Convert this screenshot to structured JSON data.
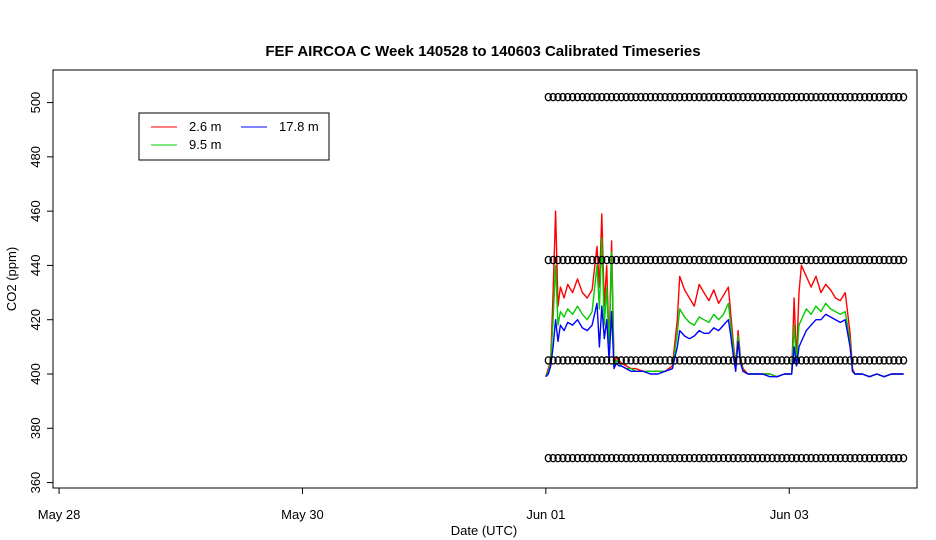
{
  "chart_data": {
    "type": "line",
    "title": "FEF AIRCOA C  Week 140528 to 140603  Calibrated Timeseries",
    "xlabel": "Date (UTC)",
    "ylabel": "CO2 (ppm)",
    "x_ticks": [
      {
        "label": "May 28",
        "day": 0
      },
      {
        "label": "May 30",
        "day": 2
      },
      {
        "label": "Jun 01",
        "day": 4
      },
      {
        "label": "Jun 03",
        "day": 6
      }
    ],
    "xlim_days": [
      -0.05,
      7.05
    ],
    "ylim": [
      358,
      512
    ],
    "y_ticks": [
      360,
      380,
      400,
      420,
      440,
      460,
      480,
      500
    ],
    "grid": false,
    "legend": {
      "placement": "top-left",
      "entries": [
        {
          "label": "2.6 m",
          "color": "#ff0000"
        },
        {
          "label": "9.5 m",
          "color": "#00cc00"
        },
        {
          "label": "17.8 m",
          "color": "#0000ff"
        }
      ]
    },
    "series": [
      {
        "name": "2.6 m",
        "color": "#ff0000",
        "x": [
          4.0,
          4.02,
          4.04,
          4.06,
          4.08,
          4.1,
          4.12,
          4.15,
          4.18,
          4.22,
          4.26,
          4.3,
          4.34,
          4.38,
          4.42,
          4.44,
          4.46,
          4.48,
          4.5,
          4.52,
          4.54,
          4.56,
          4.58,
          4.6,
          4.62,
          4.66,
          4.7,
          4.74,
          4.8,
          4.86,
          4.92,
          4.98,
          5.04,
          5.08,
          5.1,
          5.14,
          5.18,
          5.22,
          5.26,
          5.3,
          5.34,
          5.38,
          5.42,
          5.46,
          5.5,
          5.52,
          5.54,
          5.56,
          5.58,
          5.6,
          5.62,
          5.66,
          5.72,
          5.78,
          5.84,
          5.9,
          5.96,
          6.02,
          6.04,
          6.06,
          6.08,
          6.1,
          6.14,
          6.18,
          6.22,
          6.26,
          6.3,
          6.34,
          6.38,
          6.42,
          6.46,
          6.5,
          6.52,
          6.54,
          6.56,
          6.6,
          6.66,
          6.72,
          6.78,
          6.84,
          6.9,
          6.94
        ],
        "values": [
          399,
          402,
          405,
          430,
          460,
          425,
          432,
          428,
          433,
          430,
          435,
          430,
          428,
          431,
          447,
          432,
          459,
          425,
          440,
          410,
          449,
          404,
          406,
          405,
          404,
          403,
          402,
          402,
          401,
          401,
          401,
          401,
          403,
          420,
          436,
          431,
          428,
          425,
          433,
          430,
          427,
          431,
          426,
          429,
          432,
          422,
          412,
          403,
          416,
          406,
          402,
          400,
          400,
          400,
          400,
          399,
          400,
          400,
          428,
          405,
          430,
          440,
          436,
          432,
          436,
          430,
          433,
          431,
          428,
          427,
          430,
          415,
          402,
          400,
          400,
          400,
          399,
          400,
          399,
          400,
          400,
          400
        ]
      },
      {
        "name": "9.5 m",
        "color": "#00cc00",
        "x": [
          4.0,
          4.02,
          4.04,
          4.06,
          4.08,
          4.1,
          4.12,
          4.15,
          4.18,
          4.22,
          4.26,
          4.3,
          4.34,
          4.38,
          4.42,
          4.44,
          4.46,
          4.48,
          4.5,
          4.52,
          4.54,
          4.56,
          4.58,
          4.6,
          4.62,
          4.66,
          4.7,
          4.74,
          4.8,
          4.86,
          4.92,
          4.98,
          5.04,
          5.08,
          5.1,
          5.14,
          5.18,
          5.22,
          5.26,
          5.3,
          5.34,
          5.38,
          5.42,
          5.46,
          5.5,
          5.52,
          5.54,
          5.56,
          5.58,
          5.6,
          5.62,
          5.66,
          5.72,
          5.78,
          5.84,
          5.9,
          5.96,
          6.02,
          6.04,
          6.06,
          6.08,
          6.1,
          6.14,
          6.18,
          6.22,
          6.26,
          6.3,
          6.34,
          6.38,
          6.42,
          6.46,
          6.5,
          6.52,
          6.54,
          6.56,
          6.6,
          6.66,
          6.72,
          6.78,
          6.84,
          6.9,
          6.94
        ],
        "values": [
          399,
          401,
          404,
          420,
          440,
          418,
          423,
          421,
          424,
          422,
          425,
          422,
          420,
          423,
          440,
          424,
          450,
          418,
          432,
          408,
          445,
          403,
          405,
          404,
          403,
          402,
          402,
          401,
          401,
          401,
          401,
          401,
          402,
          415,
          424,
          421,
          419,
          418,
          421,
          420,
          419,
          422,
          420,
          422,
          426,
          418,
          410,
          402,
          414,
          405,
          401,
          400,
          400,
          400,
          400,
          399,
          400,
          400,
          418,
          404,
          418,
          420,
          424,
          422,
          425,
          423,
          426,
          424,
          423,
          422,
          423,
          412,
          401,
          400,
          400,
          400,
          399,
          400,
          399,
          400,
          400,
          400
        ]
      },
      {
        "name": "17.8 m",
        "color": "#0000ff",
        "x": [
          4.0,
          4.02,
          4.04,
          4.06,
          4.08,
          4.1,
          4.12,
          4.15,
          4.18,
          4.22,
          4.26,
          4.3,
          4.34,
          4.38,
          4.42,
          4.44,
          4.46,
          4.48,
          4.5,
          4.52,
          4.54,
          4.56,
          4.58,
          4.6,
          4.62,
          4.66,
          4.7,
          4.74,
          4.8,
          4.86,
          4.92,
          4.98,
          5.04,
          5.08,
          5.1,
          5.14,
          5.18,
          5.22,
          5.26,
          5.3,
          5.34,
          5.38,
          5.42,
          5.46,
          5.5,
          5.52,
          5.54,
          5.56,
          5.58,
          5.6,
          5.62,
          5.66,
          5.72,
          5.78,
          5.84,
          5.9,
          5.96,
          6.02,
          6.04,
          6.06,
          6.08,
          6.1,
          6.14,
          6.18,
          6.22,
          6.26,
          6.3,
          6.34,
          6.38,
          6.42,
          6.46,
          6.5,
          6.52,
          6.54,
          6.56,
          6.6,
          6.66,
          6.72,
          6.78,
          6.84,
          6.9,
          6.94
        ],
        "values": [
          399,
          400,
          403,
          410,
          420,
          412,
          418,
          416,
          419,
          418,
          420,
          417,
          416,
          418,
          426,
          410,
          425,
          413,
          420,
          405,
          423,
          402,
          404,
          403,
          403,
          402,
          401,
          401,
          401,
          400,
          400,
          401,
          402,
          410,
          416,
          414,
          413,
          414,
          416,
          415,
          415,
          417,
          416,
          418,
          420,
          414,
          407,
          401,
          412,
          404,
          401,
          400,
          400,
          400,
          399,
          399,
          400,
          400,
          410,
          403,
          410,
          412,
          416,
          418,
          420,
          420,
          422,
          421,
          420,
          419,
          420,
          410,
          401,
          400,
          400,
          400,
          399,
          400,
          399,
          400,
          400,
          400
        ]
      },
      {
        "name": "",
        "type": "scatter",
        "marker": "circle",
        "color": "#000000",
        "y_levels": [
          369,
          405,
          442,
          502
        ],
        "x_start": 4.02,
        "x_end": 6.94,
        "spacing": 0.04
      }
    ]
  }
}
